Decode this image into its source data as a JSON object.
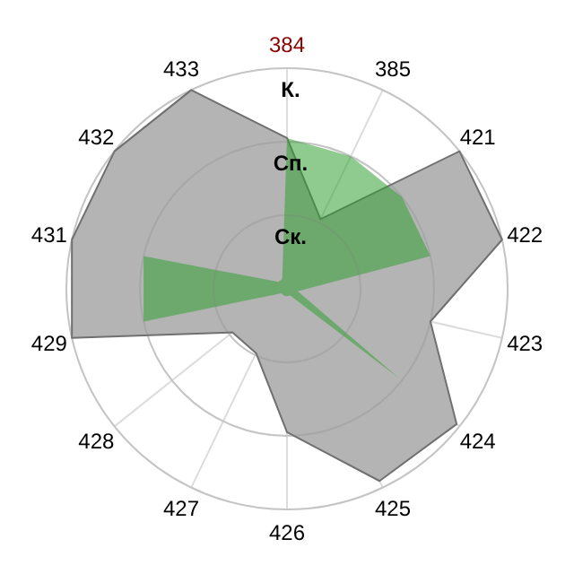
{
  "chart_data": {
    "type": "radar",
    "categories": [
      "384",
      "385",
      "421",
      "422",
      "423",
      "424",
      "425",
      "426",
      "427",
      "428",
      "429",
      "431",
      "432",
      "433"
    ],
    "ylim": [
      0,
      3
    ],
    "yticks": [
      {
        "value": 1,
        "label": "Ск."
      },
      {
        "value": 2,
        "label": "Сп."
      },
      {
        "value": 3,
        "label": "К."
      }
    ],
    "grid": true,
    "series": [
      {
        "color": "#b4b4b4",
        "values": [
          2.05,
          1.05,
          3,
          3,
          2,
          2.95,
          2.9,
          1.95,
          0.97,
          0.95,
          3,
          3,
          3,
          3
        ]
      },
      {
        "color": "#33a033",
        "values": [
          2.05,
          2,
          2,
          2,
          0.15,
          1.95,
          0.1,
          0.1,
          0.1,
          0.1,
          2,
          2,
          0.15,
          0.15
        ]
      }
    ]
  }
}
